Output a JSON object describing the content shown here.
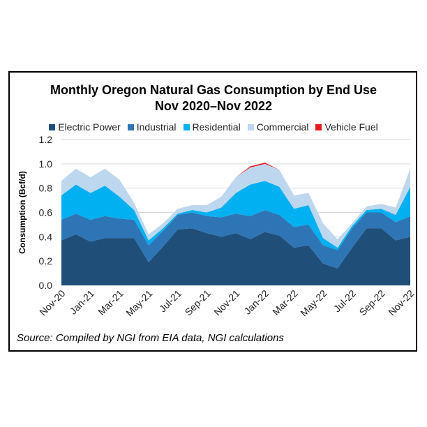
{
  "chart_data": {
    "type": "area",
    "stacked": true,
    "title": [
      "Monthly Oregon Natural Gas Consumption by End Use",
      "Nov 2020–Nov 2022"
    ],
    "ylabel": "Consumption (Bcf/d)",
    "ylim": [
      0,
      1.2
    ],
    "yticks": [
      "0.0",
      "0.2",
      "0.4",
      "0.6",
      "0.8",
      "1.0",
      "1.2"
    ],
    "grid": true,
    "legend_position": "top",
    "x_tick_labels": [
      "Nov-20",
      "Jan-21",
      "Mar-21",
      "May-21",
      "Jul-21",
      "Sep-21",
      "Nov-21",
      "Jan-22",
      "Mar-22",
      "May-22",
      "Jul-22",
      "Sep-22",
      "Nov-22"
    ],
    "x": [
      "Nov-20",
      "Dec-20",
      "Jan-21",
      "Feb-21",
      "Mar-21",
      "Apr-21",
      "May-21",
      "Jun-21",
      "Jul-21",
      "Aug-21",
      "Sep-21",
      "Oct-21",
      "Nov-21",
      "Dec-21",
      "Jan-22",
      "Feb-22",
      "Mar-22",
      "Apr-22",
      "May-22",
      "Jun-22",
      "Jul-22",
      "Aug-22",
      "Sep-22",
      "Oct-22",
      "Nov-22"
    ],
    "series": [
      {
        "name": "Electric Power",
        "color": "#1f4e79",
        "values": [
          0.37,
          0.42,
          0.36,
          0.39,
          0.39,
          0.39,
          0.19,
          0.32,
          0.46,
          0.47,
          0.43,
          0.4,
          0.43,
          0.38,
          0.44,
          0.41,
          0.31,
          0.33,
          0.18,
          0.14,
          0.31,
          0.47,
          0.47,
          0.37,
          0.4
        ]
      },
      {
        "name": "Industrial",
        "color": "#2e75b6",
        "values": [
          0.17,
          0.17,
          0.18,
          0.18,
          0.16,
          0.15,
          0.14,
          0.13,
          0.12,
          0.13,
          0.14,
          0.16,
          0.16,
          0.19,
          0.18,
          0.17,
          0.17,
          0.17,
          0.15,
          0.15,
          0.16,
          0.13,
          0.13,
          0.15,
          0.17
        ]
      },
      {
        "name": "Residential",
        "color": "#00b0f0",
        "values": [
          0.2,
          0.24,
          0.22,
          0.25,
          0.18,
          0.08,
          0.04,
          0.02,
          0.01,
          0.02,
          0.03,
          0.08,
          0.17,
          0.26,
          0.24,
          0.23,
          0.15,
          0.16,
          0.06,
          0.02,
          0.02,
          0.02,
          0.03,
          0.06,
          0.24
        ]
      },
      {
        "name": "Commercial",
        "color": "#bdd7ee",
        "values": [
          0.12,
          0.13,
          0.13,
          0.14,
          0.14,
          0.06,
          0.05,
          0.04,
          0.04,
          0.04,
          0.06,
          0.09,
          0.13,
          0.14,
          0.14,
          0.14,
          0.11,
          0.1,
          0.12,
          0.07,
          0.02,
          0.03,
          0.04,
          0.06,
          0.15
        ]
      },
      {
        "name": "Vehicle Fuel",
        "color": "#e31a1c",
        "values": [
          0.0,
          0.0,
          0.0,
          0.0,
          0.0,
          0.0,
          0.0,
          0.0,
          0.0,
          0.0,
          0.0,
          0.0,
          0.0,
          0.01,
          0.01,
          0.0,
          0.0,
          0.0,
          0.0,
          0.0,
          0.0,
          0.0,
          0.0,
          0.0,
          0.0
        ]
      }
    ],
    "source": "Source: Compiled by NGI from EIA data, NGI calculations"
  }
}
